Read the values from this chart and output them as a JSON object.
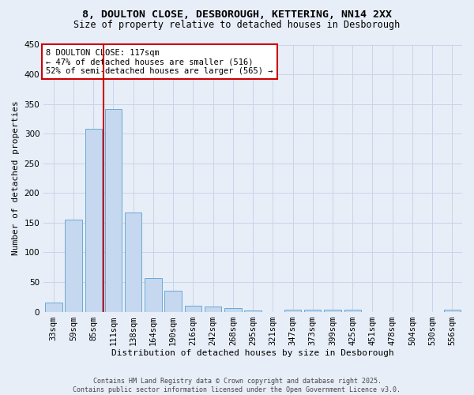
{
  "title_line1": "8, DOULTON CLOSE, DESBOROUGH, KETTERING, NN14 2XX",
  "title_line2": "Size of property relative to detached houses in Desborough",
  "xlabel": "Distribution of detached houses by size in Desborough",
  "ylabel": "Number of detached properties",
  "categories": [
    "33sqm",
    "59sqm",
    "85sqm",
    "111sqm",
    "138sqm",
    "164sqm",
    "190sqm",
    "216sqm",
    "242sqm",
    "268sqm",
    "295sqm",
    "321sqm",
    "347sqm",
    "373sqm",
    "399sqm",
    "425sqm",
    "451sqm",
    "478sqm",
    "504sqm",
    "530sqm",
    "556sqm"
  ],
  "values": [
    15,
    155,
    308,
    342,
    167,
    57,
    35,
    10,
    9,
    6,
    2,
    0,
    4,
    4,
    4,
    3,
    0,
    0,
    0,
    0,
    3
  ],
  "bar_color": "#c5d8f0",
  "bar_edge_color": "#6aaad4",
  "vline_color": "#cc0000",
  "vline_x_index": 3,
  "annotation_text": "8 DOULTON CLOSE: 117sqm\n← 47% of detached houses are smaller (516)\n52% of semi-detached houses are larger (565) →",
  "annotation_box_facecolor": "#ffffff",
  "annotation_box_edgecolor": "#cc0000",
  "ylim": [
    0,
    450
  ],
  "yticks": [
    0,
    50,
    100,
    150,
    200,
    250,
    300,
    350,
    400,
    450
  ],
  "grid_color": "#c8d4e8",
  "background_color": "#e8eef8",
  "footer_line1": "Contains HM Land Registry data © Crown copyright and database right 2025.",
  "footer_line2": "Contains public sector information licensed under the Open Government Licence v3.0.",
  "title_fontsize": 9.5,
  "subtitle_fontsize": 8.5,
  "axis_label_fontsize": 8,
  "tick_fontsize": 7.5,
  "bar_width": 0.85
}
